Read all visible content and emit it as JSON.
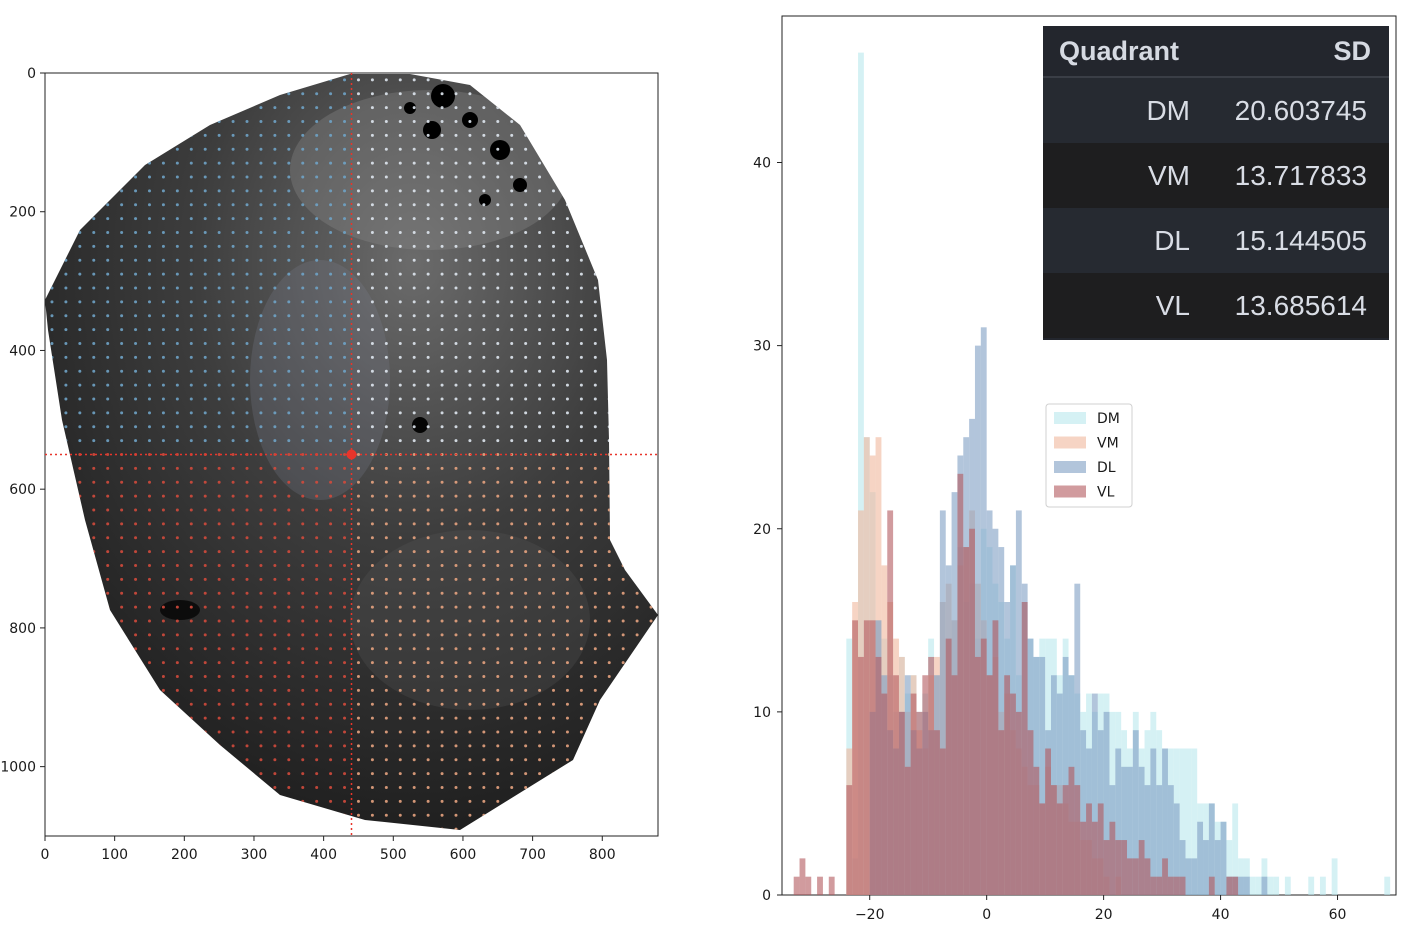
{
  "chart_data": [
    {
      "type": "image_scatter",
      "xlim": [
        0,
        880
      ],
      "ylim": [
        1100,
        0
      ],
      "xticks": [
        0,
        100,
        200,
        300,
        400,
        500,
        600,
        700,
        800
      ],
      "yticks": [
        0,
        200,
        400,
        600,
        800,
        1000
      ],
      "center": {
        "x": 440,
        "y": 550
      },
      "grid_spacing": 20,
      "quadrant_colors": {
        "DM": "#6fa3c6",
        "VM": "#dfe7f0",
        "DL": "#d14a3c",
        "VL": "#e7a37f"
      }
    },
    {
      "type": "histogram",
      "xlim": [
        -35,
        70
      ],
      "ylim": [
        0,
        48
      ],
      "xticks": [
        -20,
        0,
        20,
        40,
        60
      ],
      "xtick_labels": [
        "−20",
        "0",
        "20",
        "40",
        "60"
      ],
      "yticks": [
        0,
        10,
        20,
        30,
        40
      ],
      "legend_position": "center",
      "series": [
        {
          "name": "DM",
          "color": "#b9e7ec",
          "bins": [
            [
              -24,
              14
            ],
            [
              -23,
              2
            ],
            [
              -22,
              46
            ],
            [
              -21,
              25
            ],
            [
              -20,
              22
            ],
            [
              -19,
              15
            ],
            [
              -18,
              14
            ],
            [
              -17,
              12
            ],
            [
              -16,
              10
            ],
            [
              -15,
              13
            ],
            [
              -14,
              11
            ],
            [
              -13,
              12
            ],
            [
              -12,
              10
            ],
            [
              -11,
              11
            ],
            [
              -10,
              14
            ],
            [
              -9,
              12
            ],
            [
              -8,
              16
            ],
            [
              -7,
              14
            ],
            [
              -6,
              15
            ],
            [
              -5,
              19
            ],
            [
              -4,
              16
            ],
            [
              -3,
              17
            ],
            [
              -2,
              14
            ],
            [
              -1,
              20
            ],
            [
              0,
              19
            ],
            [
              1,
              17
            ],
            [
              2,
              16
            ],
            [
              3,
              14
            ],
            [
              4,
              18
            ],
            [
              5,
              12
            ],
            [
              6,
              16
            ],
            [
              7,
              14
            ],
            [
              8,
              13
            ],
            [
              9,
              14
            ],
            [
              10,
              14
            ],
            [
              11,
              14
            ],
            [
              12,
              12
            ],
            [
              13,
              14
            ],
            [
              14,
              12
            ],
            [
              15,
              11
            ],
            [
              16,
              10
            ],
            [
              17,
              11
            ],
            [
              18,
              10
            ],
            [
              19,
              11
            ],
            [
              20,
              11
            ],
            [
              21,
              10
            ],
            [
              22,
              10
            ],
            [
              23,
              9
            ],
            [
              24,
              8
            ],
            [
              25,
              10
            ],
            [
              26,
              8
            ],
            [
              27,
              9
            ],
            [
              28,
              10
            ],
            [
              29,
              9
            ],
            [
              30,
              8
            ],
            [
              31,
              8
            ],
            [
              32,
              8
            ],
            [
              33,
              8
            ],
            [
              34,
              8
            ],
            [
              35,
              8
            ],
            [
              36,
              5
            ],
            [
              37,
              5
            ],
            [
              38,
              5
            ],
            [
              39,
              4
            ],
            [
              40,
              4
            ],
            [
              41,
              3
            ],
            [
              42,
              5
            ],
            [
              43,
              2
            ],
            [
              44,
              2
            ],
            [
              45,
              1
            ],
            [
              46,
              1
            ],
            [
              47,
              2
            ],
            [
              48,
              1
            ],
            [
              49,
              1
            ],
            [
              51,
              1
            ],
            [
              55,
              1
            ],
            [
              57,
              1
            ],
            [
              59,
              2
            ],
            [
              68,
              1
            ]
          ]
        },
        {
          "name": "VM",
          "color": "#f0b89c",
          "bins": [
            [
              -24,
              8
            ],
            [
              -23,
              16
            ],
            [
              -22,
              21
            ],
            [
              -21,
              25
            ],
            [
              -20,
              24
            ],
            [
              -19,
              25
            ],
            [
              -18,
              18
            ],
            [
              -17,
              16
            ],
            [
              -16,
              14
            ],
            [
              -15,
              13
            ],
            [
              -14,
              10
            ],
            [
              -13,
              12
            ],
            [
              -12,
              9
            ],
            [
              -11,
              8
            ],
            [
              -10,
              12
            ],
            [
              -9,
              13
            ],
            [
              -8,
              16
            ],
            [
              -7,
              17
            ],
            [
              -6,
              15
            ],
            [
              -5,
              18
            ],
            [
              -4,
              19
            ],
            [
              -3,
              21
            ],
            [
              -2,
              17
            ],
            [
              -1,
              15
            ],
            [
              0,
              12
            ],
            [
              1,
              13
            ],
            [
              2,
              10
            ],
            [
              3,
              11
            ],
            [
              4,
              9
            ],
            [
              5,
              8
            ],
            [
              6,
              7
            ],
            [
              7,
              6
            ],
            [
              8,
              6
            ],
            [
              9,
              5
            ],
            [
              10,
              7
            ],
            [
              11,
              6
            ],
            [
              12,
              6
            ],
            [
              13,
              5
            ],
            [
              14,
              4
            ],
            [
              15,
              4
            ],
            [
              16,
              3
            ],
            [
              17,
              3
            ],
            [
              18,
              2
            ],
            [
              19,
              2
            ],
            [
              20,
              1
            ],
            [
              22,
              1
            ]
          ]
        },
        {
          "name": "DL",
          "color": "#7f9fc3",
          "bins": [
            [
              -20,
              10
            ],
            [
              -19,
              15
            ],
            [
              -18,
              12
            ],
            [
              -17,
              9
            ],
            [
              -16,
              8
            ],
            [
              -15,
              10
            ],
            [
              -14,
              12
            ],
            [
              -13,
              9
            ],
            [
              -12,
              8
            ],
            [
              -11,
              10
            ],
            [
              -10,
              9
            ],
            [
              -9,
              12
            ],
            [
              -8,
              21
            ],
            [
              -7,
              18
            ],
            [
              -6,
              22
            ],
            [
              -5,
              24
            ],
            [
              -4,
              25
            ],
            [
              -3,
              26
            ],
            [
              -2,
              30
            ],
            [
              -1,
              31
            ],
            [
              0,
              21
            ],
            [
              1,
              20
            ],
            [
              2,
              19
            ],
            [
              3,
              16
            ],
            [
              4,
              18
            ],
            [
              5,
              21
            ],
            [
              6,
              17
            ],
            [
              7,
              14
            ],
            [
              8,
              13
            ],
            [
              9,
              13
            ],
            [
              10,
              9
            ],
            [
              11,
              12
            ],
            [
              12,
              11
            ],
            [
              13,
              13
            ],
            [
              14,
              12
            ],
            [
              15,
              17
            ],
            [
              16,
              9
            ],
            [
              17,
              8
            ],
            [
              18,
              11
            ],
            [
              19,
              9
            ],
            [
              20,
              10
            ],
            [
              21,
              6
            ],
            [
              22,
              8
            ],
            [
              23,
              7
            ],
            [
              24,
              7
            ],
            [
              25,
              9
            ],
            [
              26,
              7
            ],
            [
              27,
              6
            ],
            [
              28,
              8
            ],
            [
              29,
              6
            ],
            [
              30,
              8
            ],
            [
              31,
              6
            ],
            [
              32,
              5
            ],
            [
              33,
              3
            ],
            [
              34,
              2
            ],
            [
              35,
              2
            ],
            [
              36,
              4
            ],
            [
              37,
              3
            ],
            [
              38,
              5
            ],
            [
              39,
              3
            ],
            [
              40,
              4
            ],
            [
              41,
              1
            ],
            [
              42,
              1
            ],
            [
              43,
              1
            ],
            [
              44,
              1
            ],
            [
              47,
              1
            ]
          ]
        },
        {
          "name": "VL",
          "color": "#b2585d",
          "bins": [
            [
              -33,
              1
            ],
            [
              -32,
              2
            ],
            [
              -31,
              1
            ],
            [
              -29,
              1
            ],
            [
              -27,
              1
            ],
            [
              -24,
              6
            ],
            [
              -23,
              15
            ],
            [
              -22,
              13
            ],
            [
              -21,
              15
            ],
            [
              -20,
              15
            ],
            [
              -19,
              13
            ],
            [
              -18,
              11
            ],
            [
              -17,
              21
            ],
            [
              -16,
              12
            ],
            [
              -15,
              10
            ],
            [
              -14,
              7
            ],
            [
              -13,
              11
            ],
            [
              -12,
              10
            ],
            [
              -11,
              12
            ],
            [
              -10,
              13
            ],
            [
              -9,
              9
            ],
            [
              -8,
              8
            ],
            [
              -7,
              14
            ],
            [
              -6,
              12
            ],
            [
              -5,
              23
            ],
            [
              -4,
              19
            ],
            [
              -3,
              20
            ],
            [
              -2,
              13
            ],
            [
              -1,
              14
            ],
            [
              0,
              12
            ],
            [
              1,
              15
            ],
            [
              2,
              9
            ],
            [
              3,
              12
            ],
            [
              4,
              11
            ],
            [
              5,
              10
            ],
            [
              6,
              16
            ],
            [
              7,
              9
            ],
            [
              8,
              7
            ],
            [
              9,
              5
            ],
            [
              10,
              8
            ],
            [
              11,
              6
            ],
            [
              12,
              5
            ],
            [
              13,
              6
            ],
            [
              14,
              7
            ],
            [
              15,
              6
            ],
            [
              16,
              4
            ],
            [
              17,
              5
            ],
            [
              18,
              4
            ],
            [
              19,
              5
            ],
            [
              20,
              3
            ],
            [
              21,
              4
            ],
            [
              22,
              3
            ],
            [
              23,
              3
            ],
            [
              24,
              2
            ],
            [
              25,
              2
            ],
            [
              26,
              3
            ],
            [
              27,
              2
            ],
            [
              28,
              1
            ],
            [
              29,
              1
            ],
            [
              30,
              2
            ],
            [
              31,
              1
            ],
            [
              32,
              1
            ],
            [
              33,
              1
            ],
            [
              38,
              1
            ],
            [
              41,
              1
            ],
            [
              42,
              1
            ]
          ]
        }
      ]
    }
  ],
  "table": {
    "header_quadrant": "Quadrant",
    "header_sd": "SD",
    "rows": [
      {
        "quadrant": "DM",
        "sd": "20.603745"
      },
      {
        "quadrant": "VM",
        "sd": "13.717833"
      },
      {
        "quadrant": "DL",
        "sd": "15.144505"
      },
      {
        "quadrant": "VL",
        "sd": "13.685614"
      }
    ]
  }
}
